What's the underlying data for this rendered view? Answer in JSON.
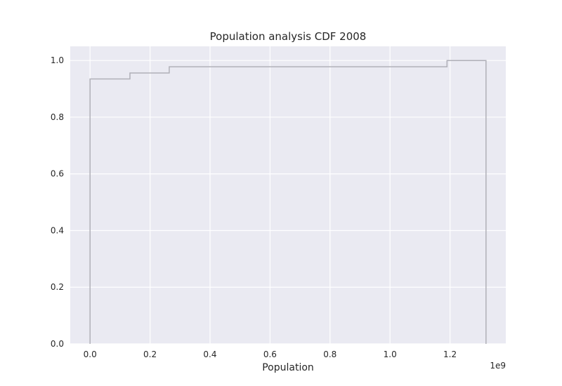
{
  "chart_data": {
    "type": "line",
    "subtype": "step-cdf",
    "title": "Population analysis CDF 2008",
    "xlabel": "Population",
    "x_offset_label": "1e9",
    "ylabel": "",
    "xlim": [
      -0.066,
      1.386
    ],
    "ylim": [
      0,
      1.05
    ],
    "x_ticks": [
      0.0,
      0.2,
      0.4,
      0.6,
      0.8,
      1.0,
      1.2
    ],
    "x_tick_labels": [
      "0.0",
      "0.2",
      "0.4",
      "0.6",
      "0.8",
      "1.0",
      "1.2"
    ],
    "y_ticks": [
      0.0,
      0.2,
      0.4,
      0.6,
      0.8,
      1.0
    ],
    "y_tick_labels": [
      "0.0",
      "0.2",
      "0.4",
      "0.6",
      "0.8",
      "1.0"
    ],
    "grid": true,
    "background_color": "#eaeaf2",
    "grid_color": "#ffffff",
    "line_color": "#b0b0b8",
    "series": [
      {
        "x": [
          0.0,
          0.0,
          0.133,
          0.133,
          0.264,
          0.264,
          1.19,
          1.19,
          1.32,
          1.32
        ],
        "y": [
          0.0,
          0.935,
          0.935,
          0.956,
          0.956,
          0.978,
          0.978,
          1.0,
          1.0,
          0.0
        ]
      }
    ]
  }
}
